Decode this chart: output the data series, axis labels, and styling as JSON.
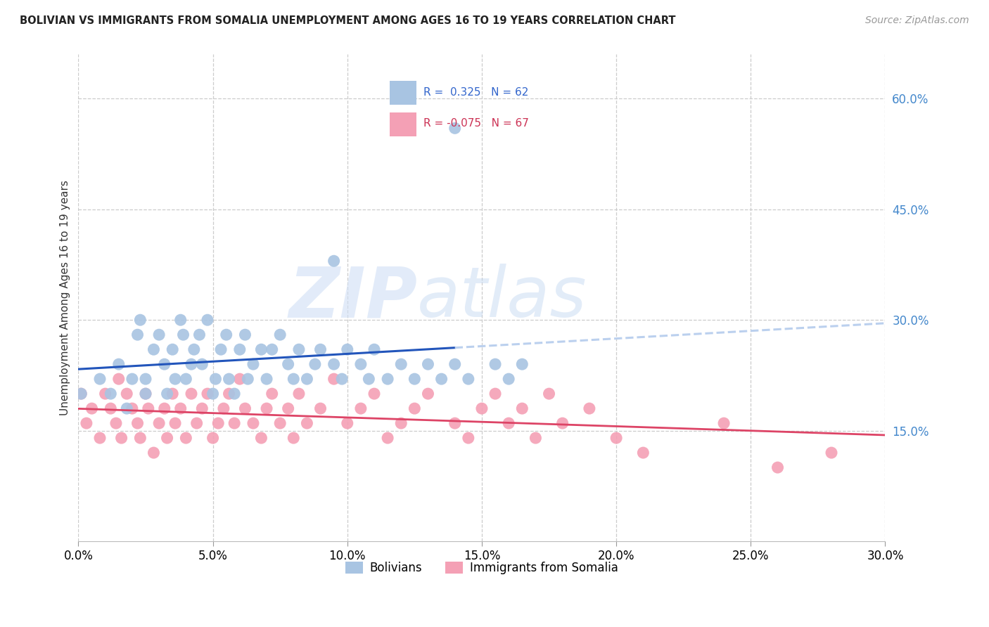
{
  "title": "BOLIVIAN VS IMMIGRANTS FROM SOMALIA UNEMPLOYMENT AMONG AGES 16 TO 19 YEARS CORRELATION CHART",
  "source": "Source: ZipAtlas.com",
  "ylabel": "Unemployment Among Ages 16 to 19 years",
  "xlim": [
    0.0,
    0.3
  ],
  "ylim": [
    0.0,
    0.66
  ],
  "xticks": [
    0.0,
    0.05,
    0.1,
    0.15,
    0.2,
    0.25,
    0.3
  ],
  "xticklabels": [
    "0.0%",
    "5.0%",
    "10.0%",
    "15.0%",
    "20.0%",
    "25.0%",
    "30.0%"
  ],
  "yticks_right": [
    0.15,
    0.3,
    0.45,
    0.6
  ],
  "yticklabels_right": [
    "15.0%",
    "30.0%",
    "45.0%",
    "60.0%"
  ],
  "R_bolivian": 0.325,
  "N_bolivian": 62,
  "R_somalia": -0.075,
  "N_somalia": 67,
  "bolivian_color": "#a8c4e2",
  "somalia_color": "#f4a0b5",
  "trend_bolivian_color": "#2255bb",
  "trend_somalia_color": "#dd4466",
  "trend_ext_color": "#bbd0ee",
  "watermark_zip": "ZIP",
  "watermark_atlas": "atlas",
  "bolivian_label": "Bolivians",
  "somalia_label": "Immigrants from Somalia",
  "bolivian_x": [
    0.001,
    0.008,
    0.012,
    0.015,
    0.018,
    0.02,
    0.022,
    0.023,
    0.025,
    0.025,
    0.028,
    0.03,
    0.032,
    0.033,
    0.035,
    0.036,
    0.038,
    0.039,
    0.04,
    0.042,
    0.043,
    0.045,
    0.046,
    0.048,
    0.05,
    0.051,
    0.053,
    0.055,
    0.056,
    0.058,
    0.06,
    0.062,
    0.063,
    0.065,
    0.068,
    0.07,
    0.072,
    0.075,
    0.078,
    0.08,
    0.082,
    0.085,
    0.088,
    0.09,
    0.095,
    0.098,
    0.1,
    0.105,
    0.108,
    0.11,
    0.115,
    0.12,
    0.125,
    0.13,
    0.135,
    0.14,
    0.145,
    0.155,
    0.16,
    0.165,
    0.095,
    0.14
  ],
  "bolivian_y": [
    0.2,
    0.22,
    0.2,
    0.24,
    0.18,
    0.22,
    0.28,
    0.3,
    0.2,
    0.22,
    0.26,
    0.28,
    0.24,
    0.2,
    0.26,
    0.22,
    0.3,
    0.28,
    0.22,
    0.24,
    0.26,
    0.28,
    0.24,
    0.3,
    0.2,
    0.22,
    0.26,
    0.28,
    0.22,
    0.2,
    0.26,
    0.28,
    0.22,
    0.24,
    0.26,
    0.22,
    0.26,
    0.28,
    0.24,
    0.22,
    0.26,
    0.22,
    0.24,
    0.26,
    0.24,
    0.22,
    0.26,
    0.24,
    0.22,
    0.26,
    0.22,
    0.24,
    0.22,
    0.24,
    0.22,
    0.24,
    0.22,
    0.24,
    0.22,
    0.24,
    0.38,
    0.56
  ],
  "somalia_x": [
    0.001,
    0.003,
    0.005,
    0.008,
    0.01,
    0.012,
    0.014,
    0.015,
    0.016,
    0.018,
    0.02,
    0.022,
    0.023,
    0.025,
    0.026,
    0.028,
    0.03,
    0.032,
    0.033,
    0.035,
    0.036,
    0.038,
    0.04,
    0.042,
    0.044,
    0.046,
    0.048,
    0.05,
    0.052,
    0.054,
    0.056,
    0.058,
    0.06,
    0.062,
    0.065,
    0.068,
    0.07,
    0.072,
    0.075,
    0.078,
    0.08,
    0.082,
    0.085,
    0.09,
    0.095,
    0.1,
    0.105,
    0.11,
    0.115,
    0.12,
    0.125,
    0.13,
    0.14,
    0.145,
    0.15,
    0.155,
    0.16,
    0.165,
    0.17,
    0.175,
    0.18,
    0.19,
    0.2,
    0.21,
    0.24,
    0.26,
    0.28
  ],
  "somalia_y": [
    0.2,
    0.16,
    0.18,
    0.14,
    0.2,
    0.18,
    0.16,
    0.22,
    0.14,
    0.2,
    0.18,
    0.16,
    0.14,
    0.2,
    0.18,
    0.12,
    0.16,
    0.18,
    0.14,
    0.2,
    0.16,
    0.18,
    0.14,
    0.2,
    0.16,
    0.18,
    0.2,
    0.14,
    0.16,
    0.18,
    0.2,
    0.16,
    0.22,
    0.18,
    0.16,
    0.14,
    0.18,
    0.2,
    0.16,
    0.18,
    0.14,
    0.2,
    0.16,
    0.18,
    0.22,
    0.16,
    0.18,
    0.2,
    0.14,
    0.16,
    0.18,
    0.2,
    0.16,
    0.14,
    0.18,
    0.2,
    0.16,
    0.18,
    0.14,
    0.2,
    0.16,
    0.18,
    0.14,
    0.12,
    0.16,
    0.1,
    0.12
  ]
}
